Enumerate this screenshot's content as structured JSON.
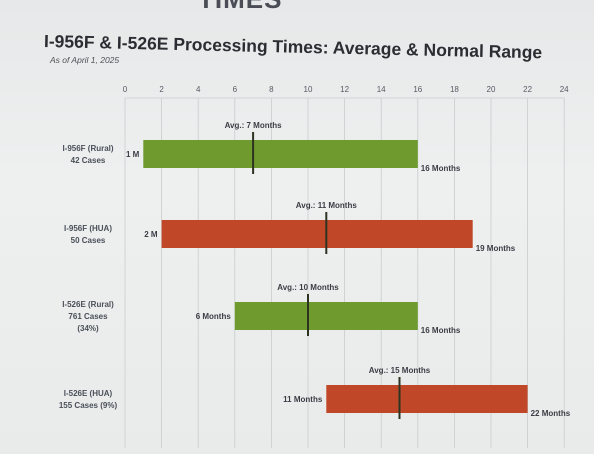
{
  "header": {
    "cropped_heading": "TIMES"
  },
  "colors": {
    "green": "#6f9a2e",
    "red": "#c04828",
    "marker": "#2c3320",
    "grid": "#c9ccce"
  },
  "chart_data": {
    "type": "bar",
    "title": "I-956F & I-526E Processing Times: Average & Normal Range",
    "subtitle": "As of April 1, 2025",
    "xlim": [
      0,
      24
    ],
    "xticks": [
      0,
      2,
      4,
      6,
      8,
      10,
      12,
      14,
      16,
      18,
      20,
      22,
      24
    ],
    "grid": true,
    "series": [
      {
        "label_lines": [
          "I-956F (Rural)",
          "42 Cases"
        ],
        "min": 1,
        "max": 16,
        "avg": 7,
        "min_label": "1 M",
        "max_label": "16 Months",
        "avg_label": "Avg.: 7 Months",
        "color": "green"
      },
      {
        "label_lines": [
          "I-956F (HUA)",
          "50 Cases"
        ],
        "min": 2,
        "max": 19,
        "avg": 11,
        "min_label": "2 M",
        "max_label": "19 Months",
        "avg_label": "Avg.: 11 Months",
        "color": "red"
      },
      {
        "label_lines": [
          "I-526E (Rural)",
          "761 Cases",
          "(34%)"
        ],
        "min": 6,
        "max": 16,
        "avg": 10,
        "min_label": "6 Months",
        "max_label": "16 Months",
        "avg_label": "Avg.: 10 Months",
        "color": "green"
      },
      {
        "label_lines": [
          "I-526E (HUA)",
          "155 Cases (9%)"
        ],
        "min": 11,
        "max": 22,
        "avg": 15,
        "min_label": "11 Months",
        "max_label": "22 Months",
        "avg_label": "Avg.: 15 Months",
        "color": "red"
      }
    ]
  }
}
